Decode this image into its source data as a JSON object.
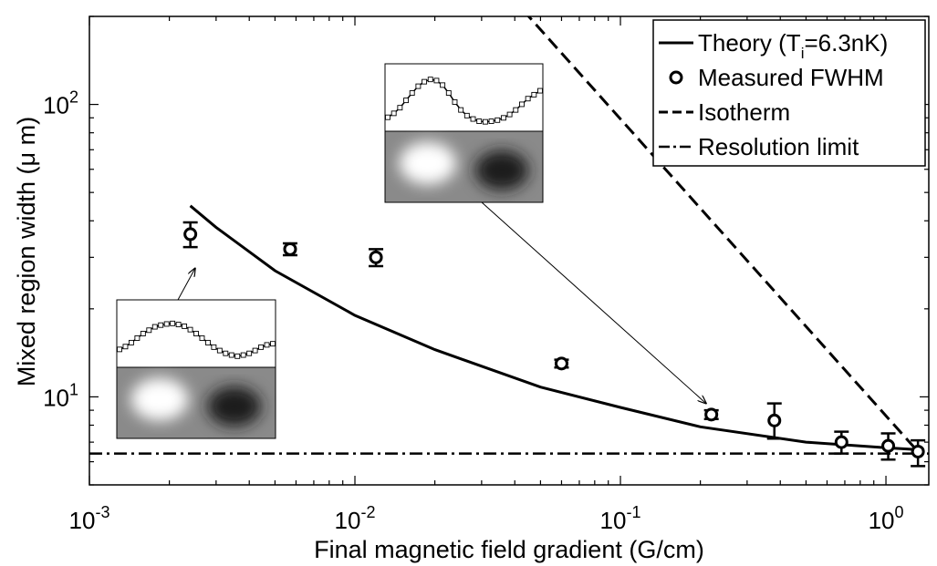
{
  "chart_data": {
    "type": "scatter",
    "xlabel": "Final magnetic field gradient (G/cm)",
    "ylabel": "Mixed region width (μ m)",
    "x_scale": "log",
    "y_scale": "log",
    "xlim": [
      0.001,
      1.45
    ],
    "ylim": [
      5,
      200
    ],
    "grid": false,
    "legend_position": "top-right",
    "x_ticks": [
      {
        "value": 0.001,
        "base": "10",
        "exp": "-3"
      },
      {
        "value": 0.01,
        "base": "10",
        "exp": "-2"
      },
      {
        "value": 0.1,
        "base": "10",
        "exp": "-1"
      },
      {
        "value": 1,
        "base": "10",
        "exp": "0"
      }
    ],
    "y_ticks": [
      {
        "value": 10,
        "base": "10",
        "exp": "1"
      },
      {
        "value": 100,
        "base": "10",
        "exp": "2"
      }
    ],
    "series": [
      {
        "name": "Theory (T_i=6.3nK)",
        "legend_main": "Theory (T",
        "legend_sub": "i",
        "legend_tail": "=6.3nK)",
        "style": "solid",
        "x": [
          0.0024,
          0.003,
          0.005,
          0.01,
          0.02,
          0.05,
          0.1,
          0.2,
          0.5,
          1.0,
          1.3
        ],
        "y": [
          45,
          38,
          27,
          19,
          14.5,
          10.8,
          9.2,
          7.9,
          7.0,
          6.7,
          6.6
        ]
      },
      {
        "name": "Measured FWHM",
        "style": "markers",
        "x": [
          0.0024,
          0.0057,
          0.012,
          0.06,
          0.22,
          0.38,
          0.68,
          1.02,
          1.32
        ],
        "y": [
          36,
          32,
          30,
          13,
          8.7,
          8.3,
          7.0,
          6.8,
          6.5
        ],
        "yerr_low": [
          32.5,
          30.5,
          28,
          12.6,
          8.4,
          7.2,
          6.4,
          6.1,
          5.8
        ],
        "yerr_high": [
          39.5,
          33.5,
          32,
          13.4,
          9.0,
          9.5,
          7.6,
          7.5,
          7.1
        ]
      },
      {
        "name": "Isotherm",
        "style": "dashed",
        "x": [
          0.043,
          1.3
        ],
        "y": [
          210,
          6.6
        ]
      },
      {
        "name": "Resolution limit",
        "style": "dashdot",
        "x": [
          0.001,
          1.45
        ],
        "y": [
          6.4,
          6.4
        ]
      }
    ],
    "insets": [
      {
        "name": "inset-low-gradient",
        "profile": [
          0.78,
          0.73,
          0.66,
          0.58,
          0.5,
          0.44,
          0.38,
          0.35,
          0.33,
          0.32,
          0.34,
          0.37,
          0.43,
          0.5,
          0.58,
          0.66,
          0.74,
          0.8,
          0.85,
          0.88,
          0.9,
          0.88,
          0.85,
          0.8,
          0.74,
          0.7,
          0.68
        ],
        "arrow_to": {
          "x": 0.0025,
          "y": 27.5
        }
      },
      {
        "name": "inset-high-gradient",
        "profile": [
          0.85,
          0.78,
          0.68,
          0.55,
          0.42,
          0.3,
          0.22,
          0.18,
          0.2,
          0.28,
          0.42,
          0.58,
          0.72,
          0.82,
          0.88,
          0.92,
          0.93,
          0.92,
          0.9,
          0.86,
          0.8,
          0.72,
          0.62,
          0.52,
          0.45,
          0.38
        ],
        "arrow_to": {
          "x": 0.21,
          "y": 9.5
        }
      }
    ]
  }
}
